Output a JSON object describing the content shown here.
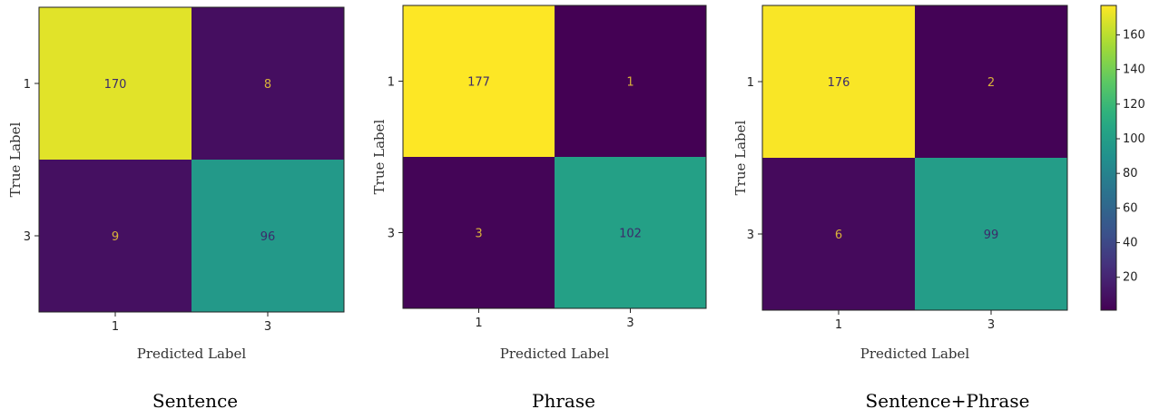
{
  "chart_data": [
    {
      "type": "heatmap",
      "caption": "Sentence",
      "xlabel": "Predicted Label",
      "ylabel": "True Label",
      "x_ticks": [
        "1",
        "3"
      ],
      "y_ticks": [
        "1",
        "3"
      ],
      "matrix": [
        [
          170,
          8
        ],
        [
          9,
          96
        ]
      ]
    },
    {
      "type": "heatmap",
      "caption": "Phrase",
      "xlabel": "Predicted Label",
      "ylabel": "True Label",
      "x_ticks": [
        "1",
        "3"
      ],
      "y_ticks": [
        "1",
        "3"
      ],
      "matrix": [
        [
          177,
          1
        ],
        [
          3,
          102
        ]
      ]
    },
    {
      "type": "heatmap",
      "caption": "Sentence+Phrase",
      "xlabel": "Predicted Label",
      "ylabel": "True Label",
      "x_ticks": [
        "1",
        "3"
      ],
      "y_ticks": [
        "1",
        "3"
      ],
      "matrix": [
        [
          176,
          2
        ],
        [
          6,
          99
        ]
      ]
    }
  ],
  "colorbar": {
    "colormap": "viridis",
    "vmin": 1,
    "vmax": 177,
    "ticks": [
      20,
      40,
      60,
      80,
      100,
      120,
      140,
      160
    ]
  }
}
